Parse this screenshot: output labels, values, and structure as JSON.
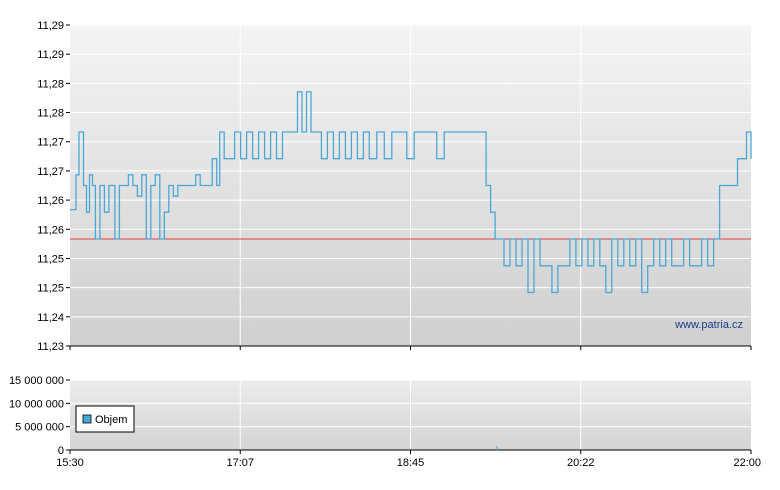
{
  "watermark": "www.patria.cz",
  "chart_data": [
    {
      "type": "line",
      "id": "price",
      "y_tick_labels": [
        "11,29",
        "11,29",
        "11,28",
        "11,28",
        "11,27",
        "11,27",
        "11,26",
        "11,26",
        "11,25",
        "11,25",
        "11,24",
        "11,23"
      ],
      "ylim": [
        11.23,
        11.29
      ],
      "grid": true,
      "reference_line": {
        "value": 11.25,
        "color": "#e04040"
      },
      "series": [
        {
          "color": "#4aa8d8",
          "points": [
            [
              0,
              11.2555
            ],
            [
              4,
              11.262
            ],
            [
              6,
              11.27
            ],
            [
              9,
              11.26
            ],
            [
              11,
              11.255
            ],
            [
              13,
              11.262
            ],
            [
              15,
              11.26
            ],
            [
              17,
              11.25
            ],
            [
              20,
              11.26
            ],
            [
              23,
              11.255
            ],
            [
              26,
              11.26
            ],
            [
              30,
              11.25
            ],
            [
              33,
              11.26
            ],
            [
              36,
              11.26
            ],
            [
              39,
              11.262
            ],
            [
              42,
              11.26
            ],
            [
              45,
              11.258
            ],
            [
              48,
              11.262
            ],
            [
              51,
              11.25
            ],
            [
              54,
              11.26
            ],
            [
              57,
              11.262
            ],
            [
              60,
              11.25
            ],
            [
              63,
              11.255
            ],
            [
              66,
              11.26
            ],
            [
              69,
              11.258
            ],
            [
              72,
              11.26
            ],
            [
              76,
              11.26
            ],
            [
              80,
              11.26
            ],
            [
              84,
              11.262
            ],
            [
              87,
              11.26
            ],
            [
              90,
              11.26
            ],
            [
              95,
              11.265
            ],
            [
              98,
              11.26
            ],
            [
              100,
              11.27
            ],
            [
              103,
              11.265
            ],
            [
              106,
              11.265
            ],
            [
              110,
              11.27
            ],
            [
              114,
              11.265
            ],
            [
              118,
              11.27
            ],
            [
              122,
              11.265
            ],
            [
              126,
              11.27
            ],
            [
              130,
              11.265
            ],
            [
              134,
              11.27
            ],
            [
              138,
              11.265
            ],
            [
              142,
              11.27
            ],
            [
              146,
              11.27
            ],
            [
              149,
              11.27
            ],
            [
              152,
              11.2775
            ],
            [
              155,
              11.27
            ],
            [
              158,
              11.2775
            ],
            [
              161,
              11.27
            ],
            [
              164,
              11.27
            ],
            [
              168,
              11.265
            ],
            [
              172,
              11.27
            ],
            [
              176,
              11.265
            ],
            [
              180,
              11.27
            ],
            [
              184,
              11.265
            ],
            [
              188,
              11.27
            ],
            [
              192,
              11.265
            ],
            [
              196,
              11.27
            ],
            [
              200,
              11.265
            ],
            [
              205,
              11.27
            ],
            [
              210,
              11.265
            ],
            [
              215,
              11.27
            ],
            [
              220,
              11.27
            ],
            [
              225,
              11.265
            ],
            [
              230,
              11.27
            ],
            [
              235,
              11.27
            ],
            [
              240,
              11.27
            ],
            [
              245,
              11.265
            ],
            [
              250,
              11.27
            ],
            [
              255,
              11.27
            ],
            [
              260,
              11.27
            ],
            [
              265,
              11.27
            ],
            [
              270,
              11.27
            ],
            [
              275,
              11.27
            ],
            [
              278,
              11.26
            ],
            [
              281,
              11.255
            ],
            [
              284,
              11.25
            ],
            [
              287,
              11.25
            ],
            [
              290,
              11.245
            ],
            [
              294,
              11.25
            ],
            [
              298,
              11.245
            ],
            [
              302,
              11.25
            ],
            [
              306,
              11.24
            ],
            [
              310,
              11.25
            ],
            [
              314,
              11.245
            ],
            [
              318,
              11.245
            ],
            [
              322,
              11.24
            ],
            [
              326,
              11.245
            ],
            [
              330,
              11.245
            ],
            [
              334,
              11.25
            ],
            [
              338,
              11.245
            ],
            [
              342,
              11.25
            ],
            [
              346,
              11.245
            ],
            [
              350,
              11.25
            ],
            [
              354,
              11.245
            ],
            [
              358,
              11.24
            ],
            [
              362,
              11.25
            ],
            [
              366,
              11.245
            ],
            [
              370,
              11.25
            ],
            [
              374,
              11.245
            ],
            [
              378,
              11.25
            ],
            [
              382,
              11.24
            ],
            [
              386,
              11.245
            ],
            [
              390,
              11.25
            ],
            [
              394,
              11.245
            ],
            [
              398,
              11.25
            ],
            [
              402,
              11.245
            ],
            [
              406,
              11.245
            ],
            [
              410,
              11.25
            ],
            [
              414,
              11.245
            ],
            [
              418,
              11.245
            ],
            [
              422,
              11.25
            ],
            [
              426,
              11.245
            ],
            [
              430,
              11.25
            ],
            [
              434,
              11.26
            ],
            [
              438,
              11.26
            ],
            [
              442,
              11.26
            ],
            [
              446,
              11.265
            ],
            [
              450,
              11.265
            ],
            [
              452,
              11.27
            ],
            [
              455,
              11.265
            ]
          ]
        }
      ]
    },
    {
      "type": "bar",
      "id": "volume",
      "y_tick_labels": [
        "15 000 000",
        "10 000 000",
        "5 000 000",
        "0"
      ],
      "ylim": [
        0,
        15000000
      ],
      "grid": true,
      "legend": {
        "entries": [
          "Objem"
        ],
        "position": "left"
      },
      "series": [
        {
          "name": "Objem",
          "color": "#4aa8d8",
          "values": []
        }
      ]
    }
  ],
  "x_tick_labels": [
    "15:30",
    "17:07",
    "18:45",
    "20:22",
    "22:00"
  ]
}
